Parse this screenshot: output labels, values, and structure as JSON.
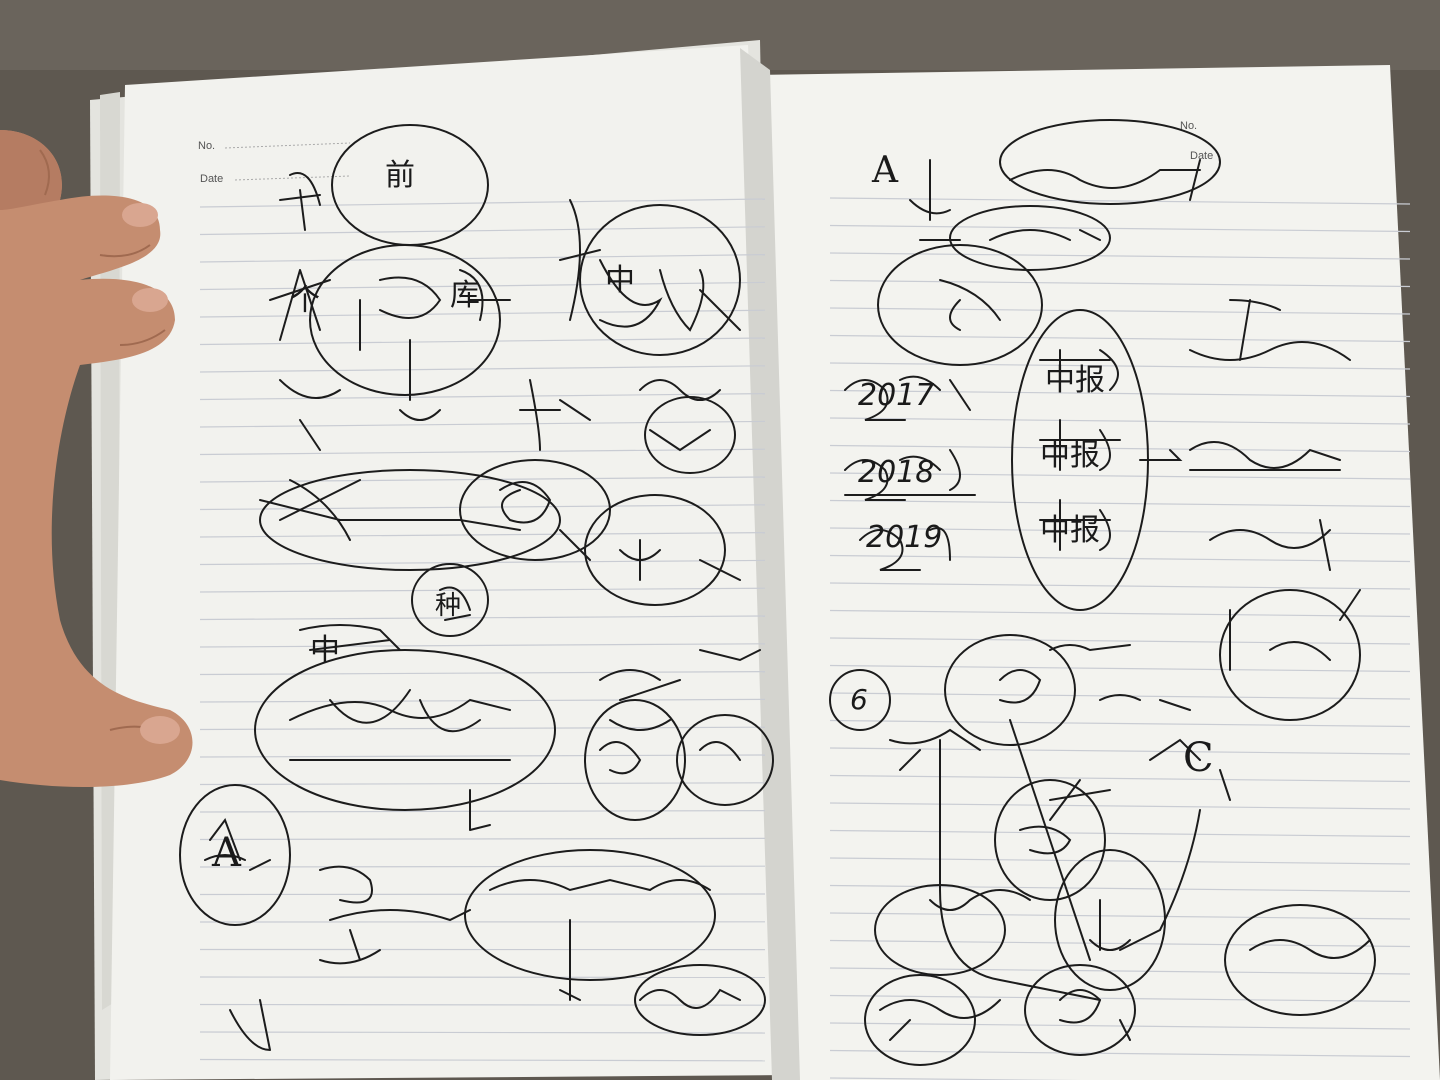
{
  "notebook": {
    "left_page": {
      "header": {
        "no_label": "No.",
        "date_label": "Date"
      },
      "notes": [
        {
          "id": "n1",
          "text": "前"
        },
        {
          "id": "n2",
          "text": "个"
        },
        {
          "id": "n3",
          "text": "库"
        },
        {
          "id": "n4",
          "text": "中"
        },
        {
          "id": "n5",
          "text": "种"
        },
        {
          "id": "n6",
          "text": "中"
        },
        {
          "id": "n7",
          "text": "A"
        }
      ]
    },
    "right_page": {
      "header": {
        "no_label": "No.",
        "date_label": "Date"
      },
      "notes": [
        {
          "id": "r1",
          "text": "A"
        },
        {
          "id": "r2",
          "text": "2017"
        },
        {
          "id": "r3",
          "text": "2018"
        },
        {
          "id": "r4",
          "text": "2019"
        },
        {
          "id": "r5",
          "text": "中报"
        },
        {
          "id": "r6",
          "text": "中报"
        },
        {
          "id": "r7",
          "text": "中报"
        },
        {
          "id": "r8",
          "text": "C"
        },
        {
          "id": "r9",
          "text": "6"
        }
      ]
    }
  },
  "colors": {
    "paper": "#f2f2ee",
    "ink": "#1a1a1a",
    "rule": "#c9ccd3",
    "skin": "#c98f72",
    "desk": "#5a544c"
  }
}
